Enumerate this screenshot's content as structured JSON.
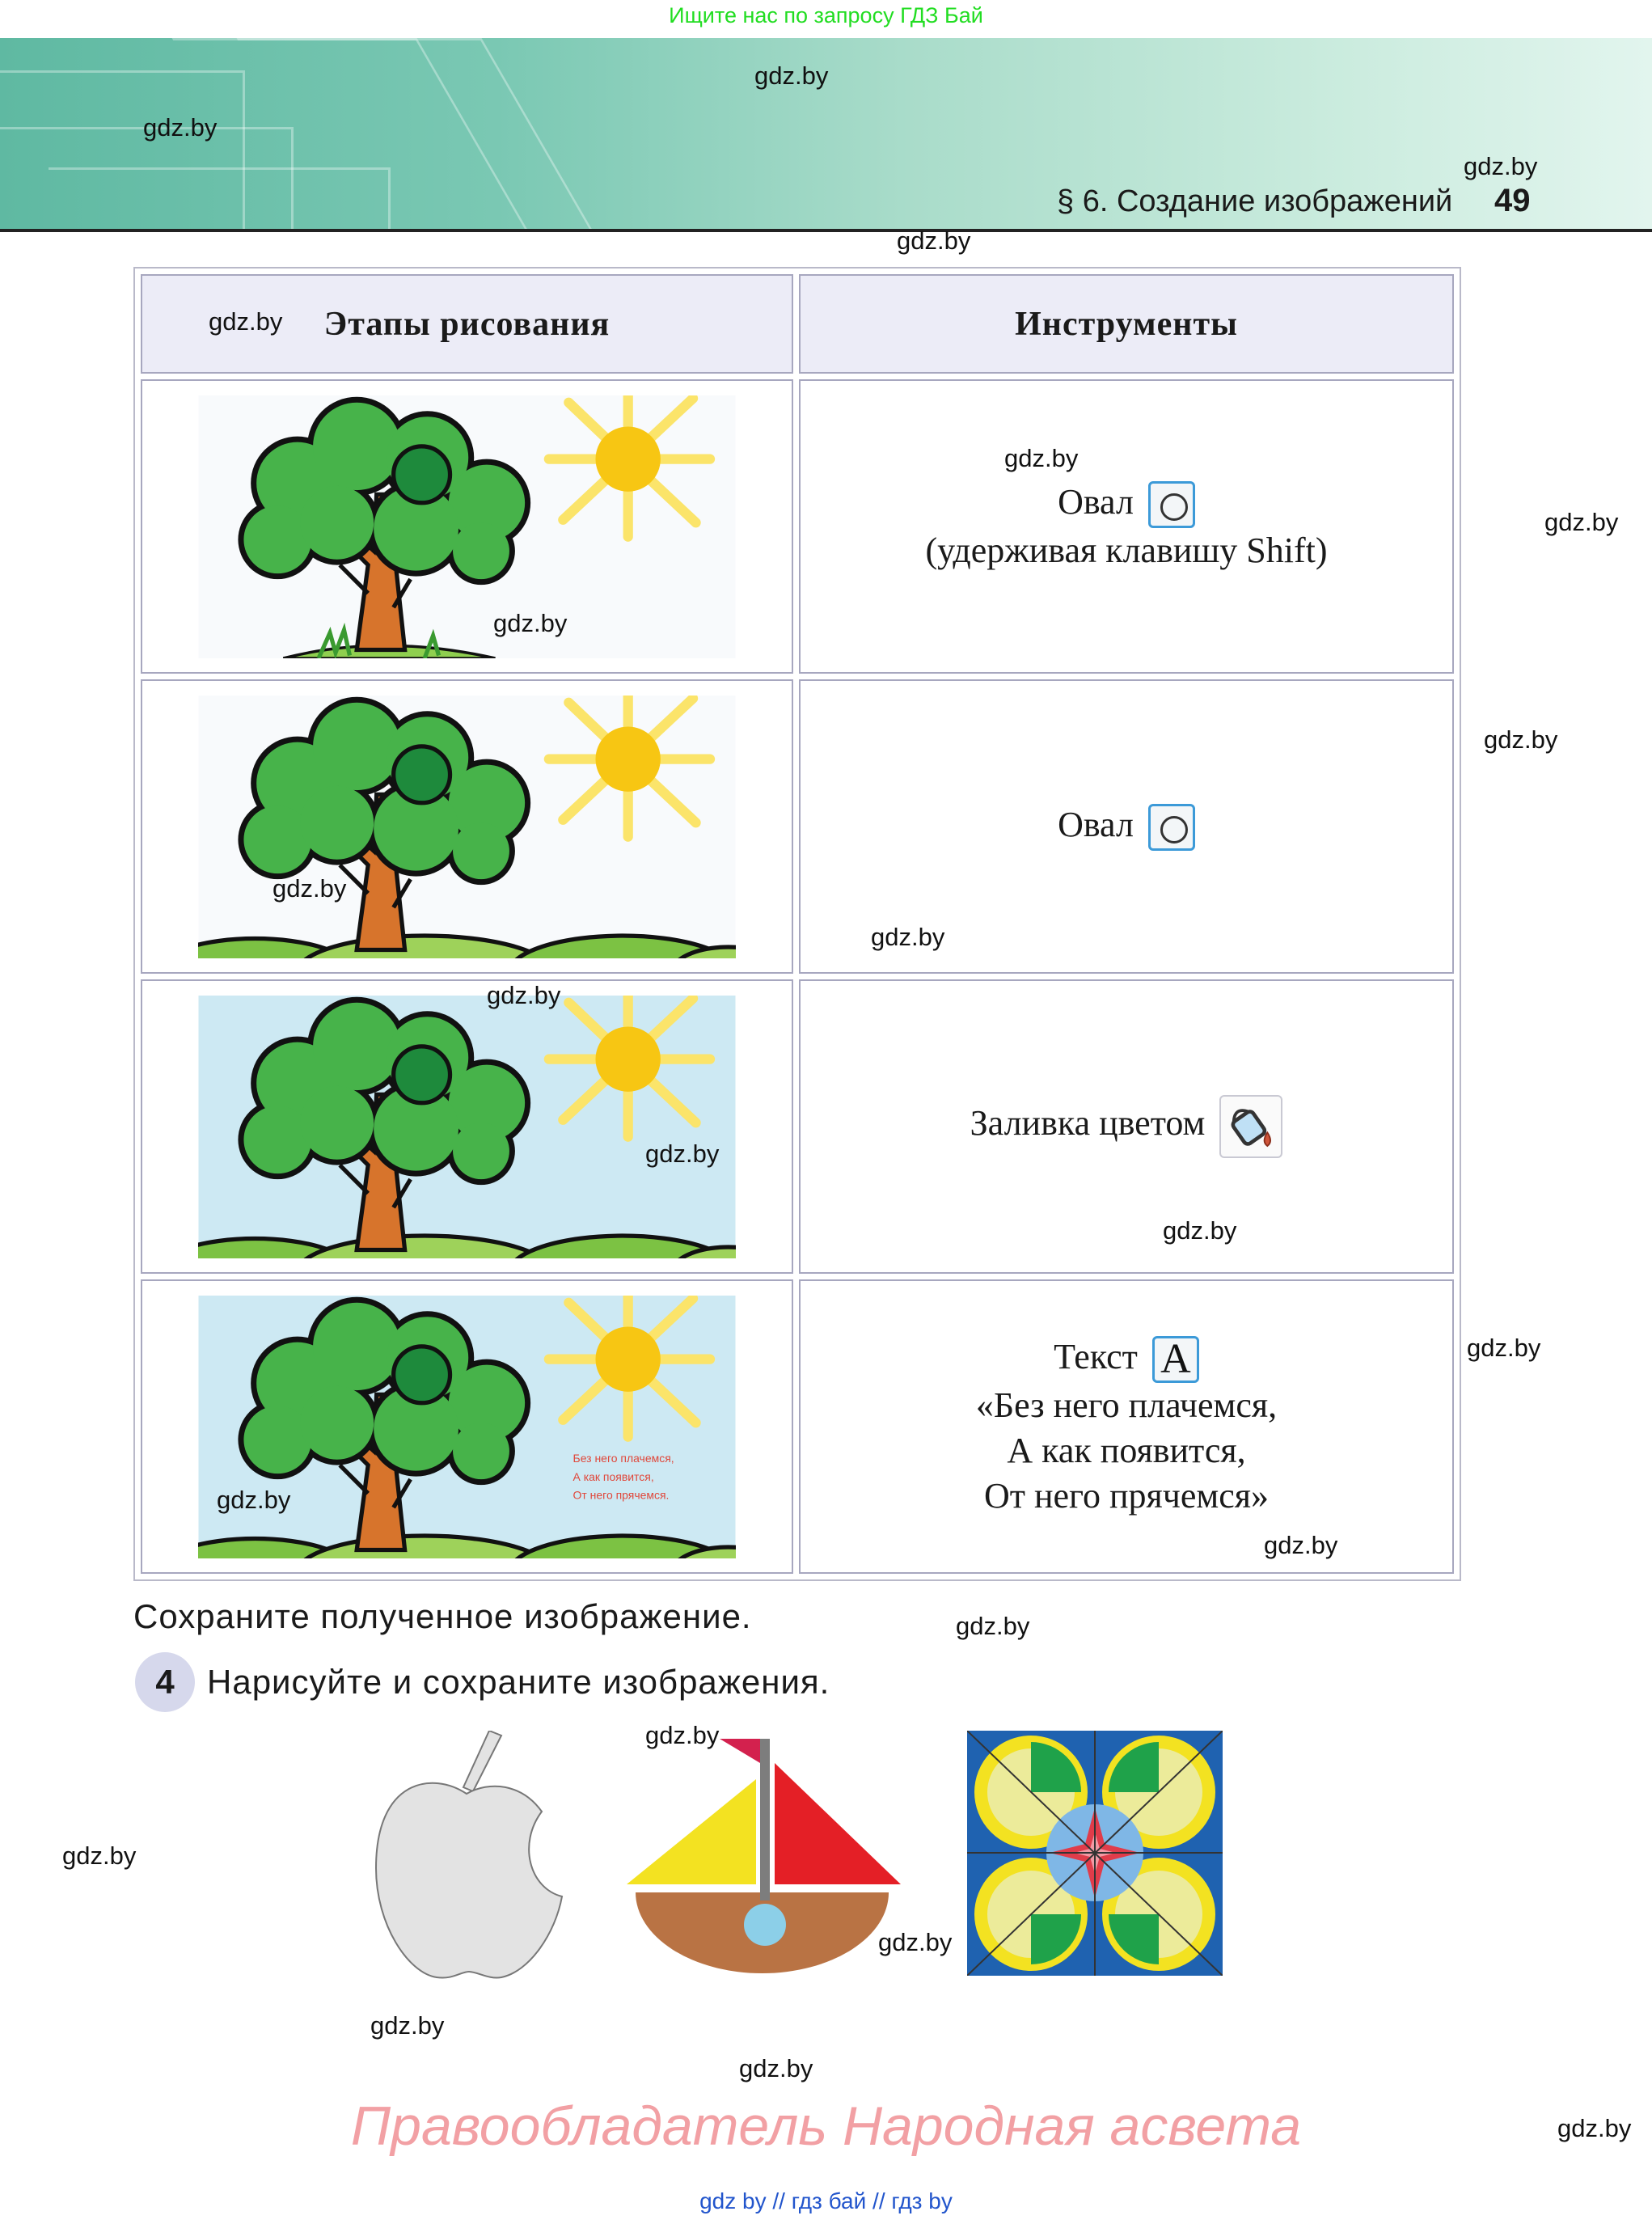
{
  "top_note": "Ищите нас по запросу ГДЗ Бай",
  "header": {
    "section_title": "§ 6. Создание изображений",
    "page_number": "49"
  },
  "watermark": "gdz.by",
  "table": {
    "headers": [
      "Этапы рисования",
      "Инструменты"
    ],
    "rows": [
      {
        "tool_line1": "Овал",
        "tool_line2": "(удерживая клавишу Shift)",
        "icon": "oval-icon"
      },
      {
        "tool_line1": "Овал",
        "icon": "oval-icon"
      },
      {
        "tool_line1": "Заливка цветом",
        "icon": "paint-bucket-icon"
      },
      {
        "tool_line1": "Текст",
        "icon": "text-icon",
        "icon_glyph": "A",
        "poem": [
          "«Без него плачемся,",
          "А как появится,",
          "От него прячемся»"
        ],
        "scene_text": [
          "Без него плачемся,",
          "А как появится,",
          "От него прячемся."
        ]
      }
    ]
  },
  "save_instruction": "Сохраните полученное изображение.",
  "task": {
    "number": "4",
    "text": "Нарисуйте и сохраните изображения."
  },
  "copyright": "Правообладатель  Народная асвета",
  "footer_links": [
    "gdz by",
    "//",
    "гдз бай",
    "//",
    "гдз by"
  ],
  "colors": {
    "accent_green": "#22dd22",
    "banner": "#7ac8b3",
    "table_header_bg": "#ececf7",
    "icon_border": "#3c9ad8",
    "copyright_pink": "#f2a0a4",
    "link_blue": "#2255cc"
  }
}
